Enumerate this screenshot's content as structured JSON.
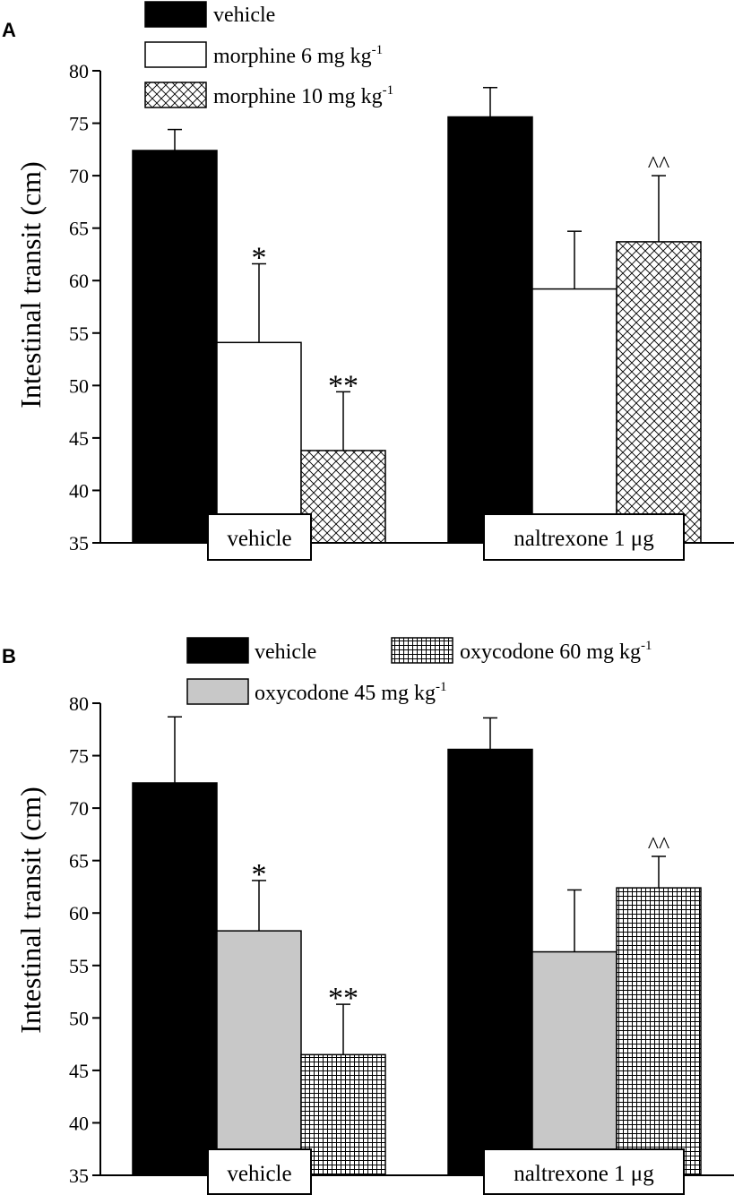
{
  "colors": {
    "black": "#000000",
    "white": "#ffffff",
    "gray": "#c8c8c8"
  },
  "chart_data": [
    {
      "panel": "A",
      "type": "bar",
      "ylabel": "Intestinal transit (cm)",
      "ylim": [
        35,
        80
      ],
      "yticks": [
        35,
        40,
        45,
        50,
        55,
        60,
        65,
        70,
        75,
        80
      ],
      "categories": [
        "vehicle",
        "naltrexone 1 μg"
      ],
      "series": [
        {
          "name": "vehicle",
          "unit": "",
          "pattern": "solid-black",
          "values": [
            72.4,
            75.6
          ],
          "errors": [
            2.0,
            2.8
          ],
          "annotations": [
            "",
            ""
          ]
        },
        {
          "name": "morphine 6 mg kg",
          "unit": "-1",
          "pattern": "white",
          "values": [
            54.1,
            59.2
          ],
          "errors": [
            7.5,
            5.5
          ],
          "annotations": [
            "*",
            ""
          ]
        },
        {
          "name": "morphine 10 mg kg",
          "unit": "-1",
          "pattern": "crosshatch",
          "values": [
            43.8,
            63.7
          ],
          "errors": [
            5.6,
            6.3
          ],
          "annotations": [
            "**",
            "^^"
          ]
        }
      ]
    },
    {
      "panel": "B",
      "type": "bar",
      "ylabel": "Intestinal transit (cm)",
      "ylim": [
        35,
        80
      ],
      "yticks": [
        35,
        40,
        45,
        50,
        55,
        60,
        65,
        70,
        75,
        80
      ],
      "categories": [
        "vehicle",
        "naltrexone 1 μg"
      ],
      "series": [
        {
          "name": "vehicle",
          "unit": "",
          "pattern": "solid-black",
          "values": [
            72.4,
            75.6
          ],
          "errors": [
            6.3,
            3.0
          ],
          "annotations": [
            "",
            ""
          ]
        },
        {
          "name": "oxycodone 45 mg kg",
          "unit": "-1",
          "pattern": "gray",
          "values": [
            58.3,
            56.3
          ],
          "errors": [
            4.8,
            5.9
          ],
          "annotations": [
            "*",
            ""
          ]
        },
        {
          "name": "oxycodone 60 mg kg",
          "unit": "-1",
          "pattern": "grid",
          "values": [
            46.5,
            62.4
          ],
          "errors": [
            4.8,
            3.0
          ],
          "annotations": [
            "**",
            "^^"
          ]
        }
      ]
    }
  ]
}
